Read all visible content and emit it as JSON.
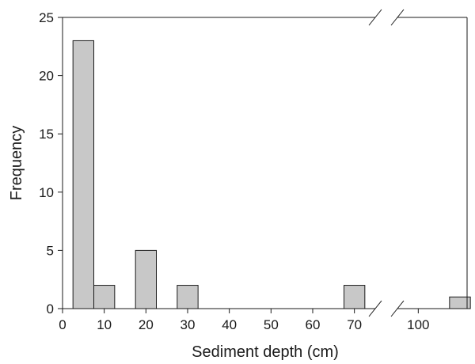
{
  "chart_data": {
    "type": "bar",
    "xlabel": "Sediment depth (cm)",
    "ylabel": "Frequency",
    "ylim": [
      0,
      25
    ],
    "yticks": [
      0,
      5,
      10,
      15,
      20,
      25
    ],
    "xlim": [
      0,
      120
    ],
    "xticks": [
      0,
      10,
      20,
      30,
      40,
      50,
      60,
      70,
      100
    ],
    "axis_break": [
      75,
      95
    ],
    "bin_width": 5,
    "bins": [
      {
        "x0": 2.5,
        "x1": 7.5,
        "value": 23
      },
      {
        "x0": 7.5,
        "x1": 12.5,
        "value": 2
      },
      {
        "x0": 17.5,
        "x1": 22.5,
        "value": 5
      },
      {
        "x0": 27.5,
        "x1": 32.5,
        "value": 2
      },
      {
        "x0": 67.5,
        "x1": 72.5,
        "value": 2
      },
      {
        "x0": 107.5,
        "x1": 112.5,
        "value": 1
      }
    ],
    "bar_color": "#c8c8c8",
    "grid": false
  }
}
